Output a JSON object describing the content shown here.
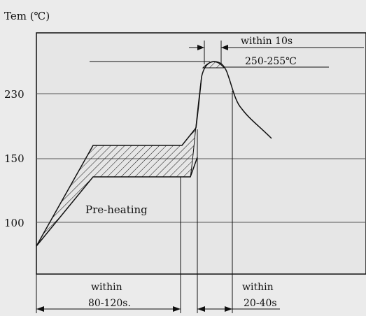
{
  "y_axis_title": "Tem (℃)",
  "y_ticks": [
    {
      "label": "230",
      "value": 230
    },
    {
      "label": "150",
      "value": 150
    },
    {
      "label": "100",
      "value": 100
    }
  ],
  "annotations": {
    "peak_time": "within 10s",
    "peak_temp": "250-255℃",
    "preheat": "Pre-heating",
    "preheat_within": "within",
    "preheat_duration": "80-120s.",
    "reflow_within": "within",
    "reflow_duration": "20-40s"
  },
  "colors": {
    "background": "#ebebeb",
    "plot_area": "#e6e6e6",
    "line": "#111111",
    "gridline": "#555555"
  }
}
